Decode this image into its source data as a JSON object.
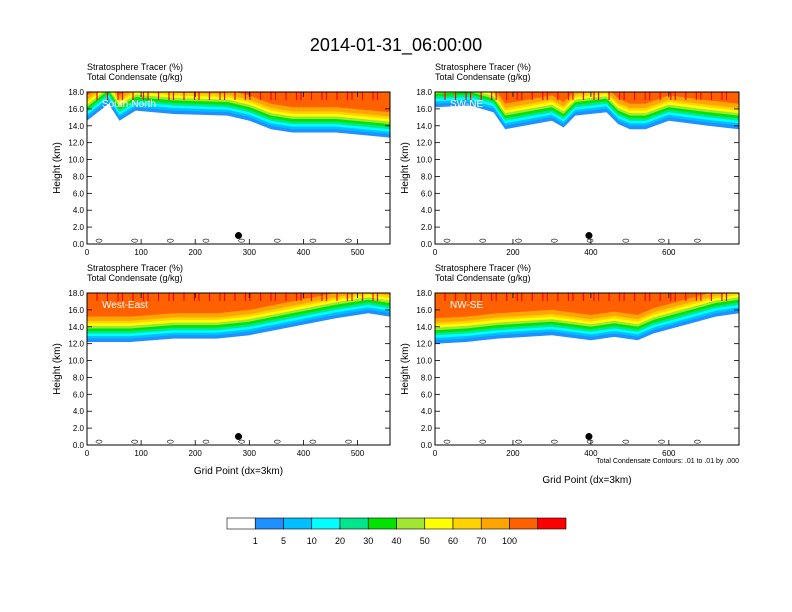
{
  "figure": {
    "title": "2014-01-31_06:00:00",
    "footnote": "Total Condensate Contours: .01 to .01 by .000"
  },
  "colorbar": {
    "colors": [
      "#ffffff",
      "#1e90ff",
      "#00bfff",
      "#00ffff",
      "#00e68c",
      "#00e400",
      "#a0e632",
      "#ffff00",
      "#ffd200",
      "#ffa500",
      "#ff6000",
      "#ff0000"
    ],
    "labels": [
      "1",
      "5",
      "10",
      "20",
      "30",
      "40",
      "50",
      "60",
      "70",
      "100"
    ]
  },
  "chart_data": [
    {
      "type": "heatmap",
      "panel_label": "South-North",
      "title_line1": "Stratosphere Tracer   (%)",
      "title_line2": "Total Condensate   (g/kg)",
      "xlabel": "",
      "ylabel": "Height (km)",
      "xlim": [
        0,
        560
      ],
      "ylim": [
        0,
        18
      ],
      "xticks": [
        "0",
        "100",
        "200",
        "300",
        "400",
        "500"
      ],
      "xtick_values": [
        0,
        100,
        200,
        300,
        400,
        500
      ],
      "yticks": [
        "0.0",
        "2.0",
        "4.0",
        "6.0",
        "8.0",
        "10.0",
        "12.0",
        "14.0",
        "16.0",
        "18.0"
      ],
      "tracer_base_km": [
        [
          0,
          14.6
        ],
        [
          40,
          16.6
        ],
        [
          60,
          14.6
        ],
        [
          90,
          15.8
        ],
        [
          160,
          15.4
        ],
        [
          260,
          15.2
        ],
        [
          300,
          14.6
        ],
        [
          340,
          13.6
        ],
        [
          380,
          13.2
        ],
        [
          460,
          13.2
        ],
        [
          560,
          12.6
        ]
      ],
      "marker_point": [
        280,
        1.0
      ]
    },
    {
      "type": "heatmap",
      "panel_label": "SW-NE",
      "title_line1": "Stratosphere Tracer   (%)",
      "title_line2": "Total Condensate   (g/kg)",
      "xlabel": "",
      "ylabel": "Height (km)",
      "xlim": [
        0,
        780
      ],
      "ylim": [
        0,
        18
      ],
      "xticks": [
        "0",
        "200",
        "400",
        "600"
      ],
      "xtick_values": [
        0,
        200,
        400,
        600
      ],
      "yticks": [
        "0.0",
        "2.0",
        "4.0",
        "6.0",
        "8.0",
        "10.0",
        "12.0",
        "14.0",
        "16.0",
        "18.0"
      ],
      "tracer_base_km": [
        [
          0,
          16.2
        ],
        [
          90,
          16.4
        ],
        [
          150,
          15.6
        ],
        [
          180,
          13.6
        ],
        [
          300,
          14.6
        ],
        [
          330,
          13.8
        ],
        [
          360,
          15.2
        ],
        [
          440,
          15.6
        ],
        [
          470,
          14.2
        ],
        [
          500,
          13.6
        ],
        [
          540,
          13.6
        ],
        [
          600,
          14.6
        ],
        [
          700,
          14.0
        ],
        [
          780,
          13.6
        ]
      ],
      "marker_point": [
        395,
        1.0
      ]
    },
    {
      "type": "heatmap",
      "panel_label": "West-East",
      "title_line1": "Stratosphere Tracer   (%)",
      "title_line2": "Total Condensate   (g/kg)",
      "xlabel": "Grid Point (dx=3km)",
      "ylabel": "Height (km)",
      "xlim": [
        0,
        560
      ],
      "ylim": [
        0,
        18
      ],
      "xticks": [
        "0",
        "100",
        "200",
        "300",
        "400",
        "500"
      ],
      "xtick_values": [
        0,
        100,
        200,
        300,
        400,
        500
      ],
      "yticks": [
        "0.0",
        "2.0",
        "4.0",
        "6.0",
        "8.0",
        "10.0",
        "12.0",
        "14.0",
        "16.0",
        "18.0"
      ],
      "tracer_base_km": [
        [
          0,
          12.2
        ],
        [
          80,
          12.2
        ],
        [
          160,
          12.6
        ],
        [
          240,
          12.6
        ],
        [
          300,
          13.0
        ],
        [
          380,
          14.0
        ],
        [
          460,
          15.0
        ],
        [
          520,
          15.6
        ],
        [
          560,
          15.2
        ]
      ],
      "marker_point": [
        280,
        1.0
      ]
    },
    {
      "type": "heatmap",
      "panel_label": "NW-SE",
      "title_line1": "Stratosphere Tracer   (%)",
      "title_line2": "Total Condensate   (g/kg)",
      "xlabel": "Grid Point (dx=3km)",
      "ylabel": "Height (km)",
      "xlim": [
        0,
        780
      ],
      "ylim": [
        0,
        18
      ],
      "xticks": [
        "0",
        "200",
        "400",
        "600"
      ],
      "xtick_values": [
        0,
        200,
        400,
        600
      ],
      "yticks": [
        "0.0",
        "2.0",
        "4.0",
        "6.0",
        "8.0",
        "10.0",
        "12.0",
        "14.0",
        "16.0",
        "18.0"
      ],
      "tracer_base_km": [
        [
          0,
          12.0
        ],
        [
          80,
          12.2
        ],
        [
          160,
          12.6
        ],
        [
          300,
          13.0
        ],
        [
          400,
          12.4
        ],
        [
          460,
          12.8
        ],
        [
          520,
          12.4
        ],
        [
          560,
          13.2
        ],
        [
          640,
          14.2
        ],
        [
          720,
          15.2
        ],
        [
          780,
          15.6
        ]
      ],
      "marker_point": [
        395,
        1.0
      ]
    }
  ]
}
